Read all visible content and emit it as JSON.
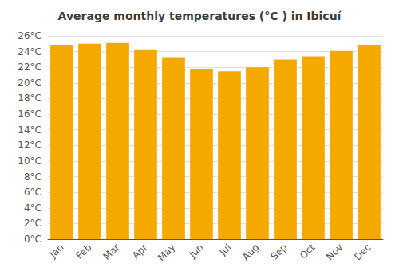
{
  "chart_data": {
    "type": "bar",
    "title": "Average monthly temperatures (°C ) in Ibicuí",
    "categories": [
      "Jan",
      "Feb",
      "Mar",
      "Apr",
      "May",
      "Jun",
      "Jul",
      "Aug",
      "Sep",
      "Oct",
      "Nov",
      "Dec"
    ],
    "values": [
      24.8,
      25.0,
      25.1,
      24.2,
      23.2,
      21.8,
      21.5,
      22.0,
      23.0,
      23.4,
      24.1,
      24.8
    ],
    "color": "#F5A800",
    "ylim": [
      0,
      26
    ],
    "yticks": [
      {
        "value": 0,
        "label": "0°C"
      },
      {
        "value": 2,
        "label": "2°C"
      },
      {
        "value": 4,
        "label": "4°C"
      },
      {
        "value": 6,
        "label": "6°C"
      },
      {
        "value": 8,
        "label": "8°C"
      },
      {
        "value": 10,
        "label": "10°C"
      },
      {
        "value": 12,
        "label": "12°C"
      },
      {
        "value": 14,
        "label": "14°C"
      },
      {
        "value": 16,
        "label": "16°C"
      },
      {
        "value": 18,
        "label": "18°C"
      },
      {
        "value": 20,
        "label": "20°C"
      },
      {
        "value": 22,
        "label": "22°C"
      },
      {
        "value": 24,
        "label": "24°C"
      },
      {
        "value": 26,
        "label": "26°C"
      }
    ],
    "grid": true
  }
}
